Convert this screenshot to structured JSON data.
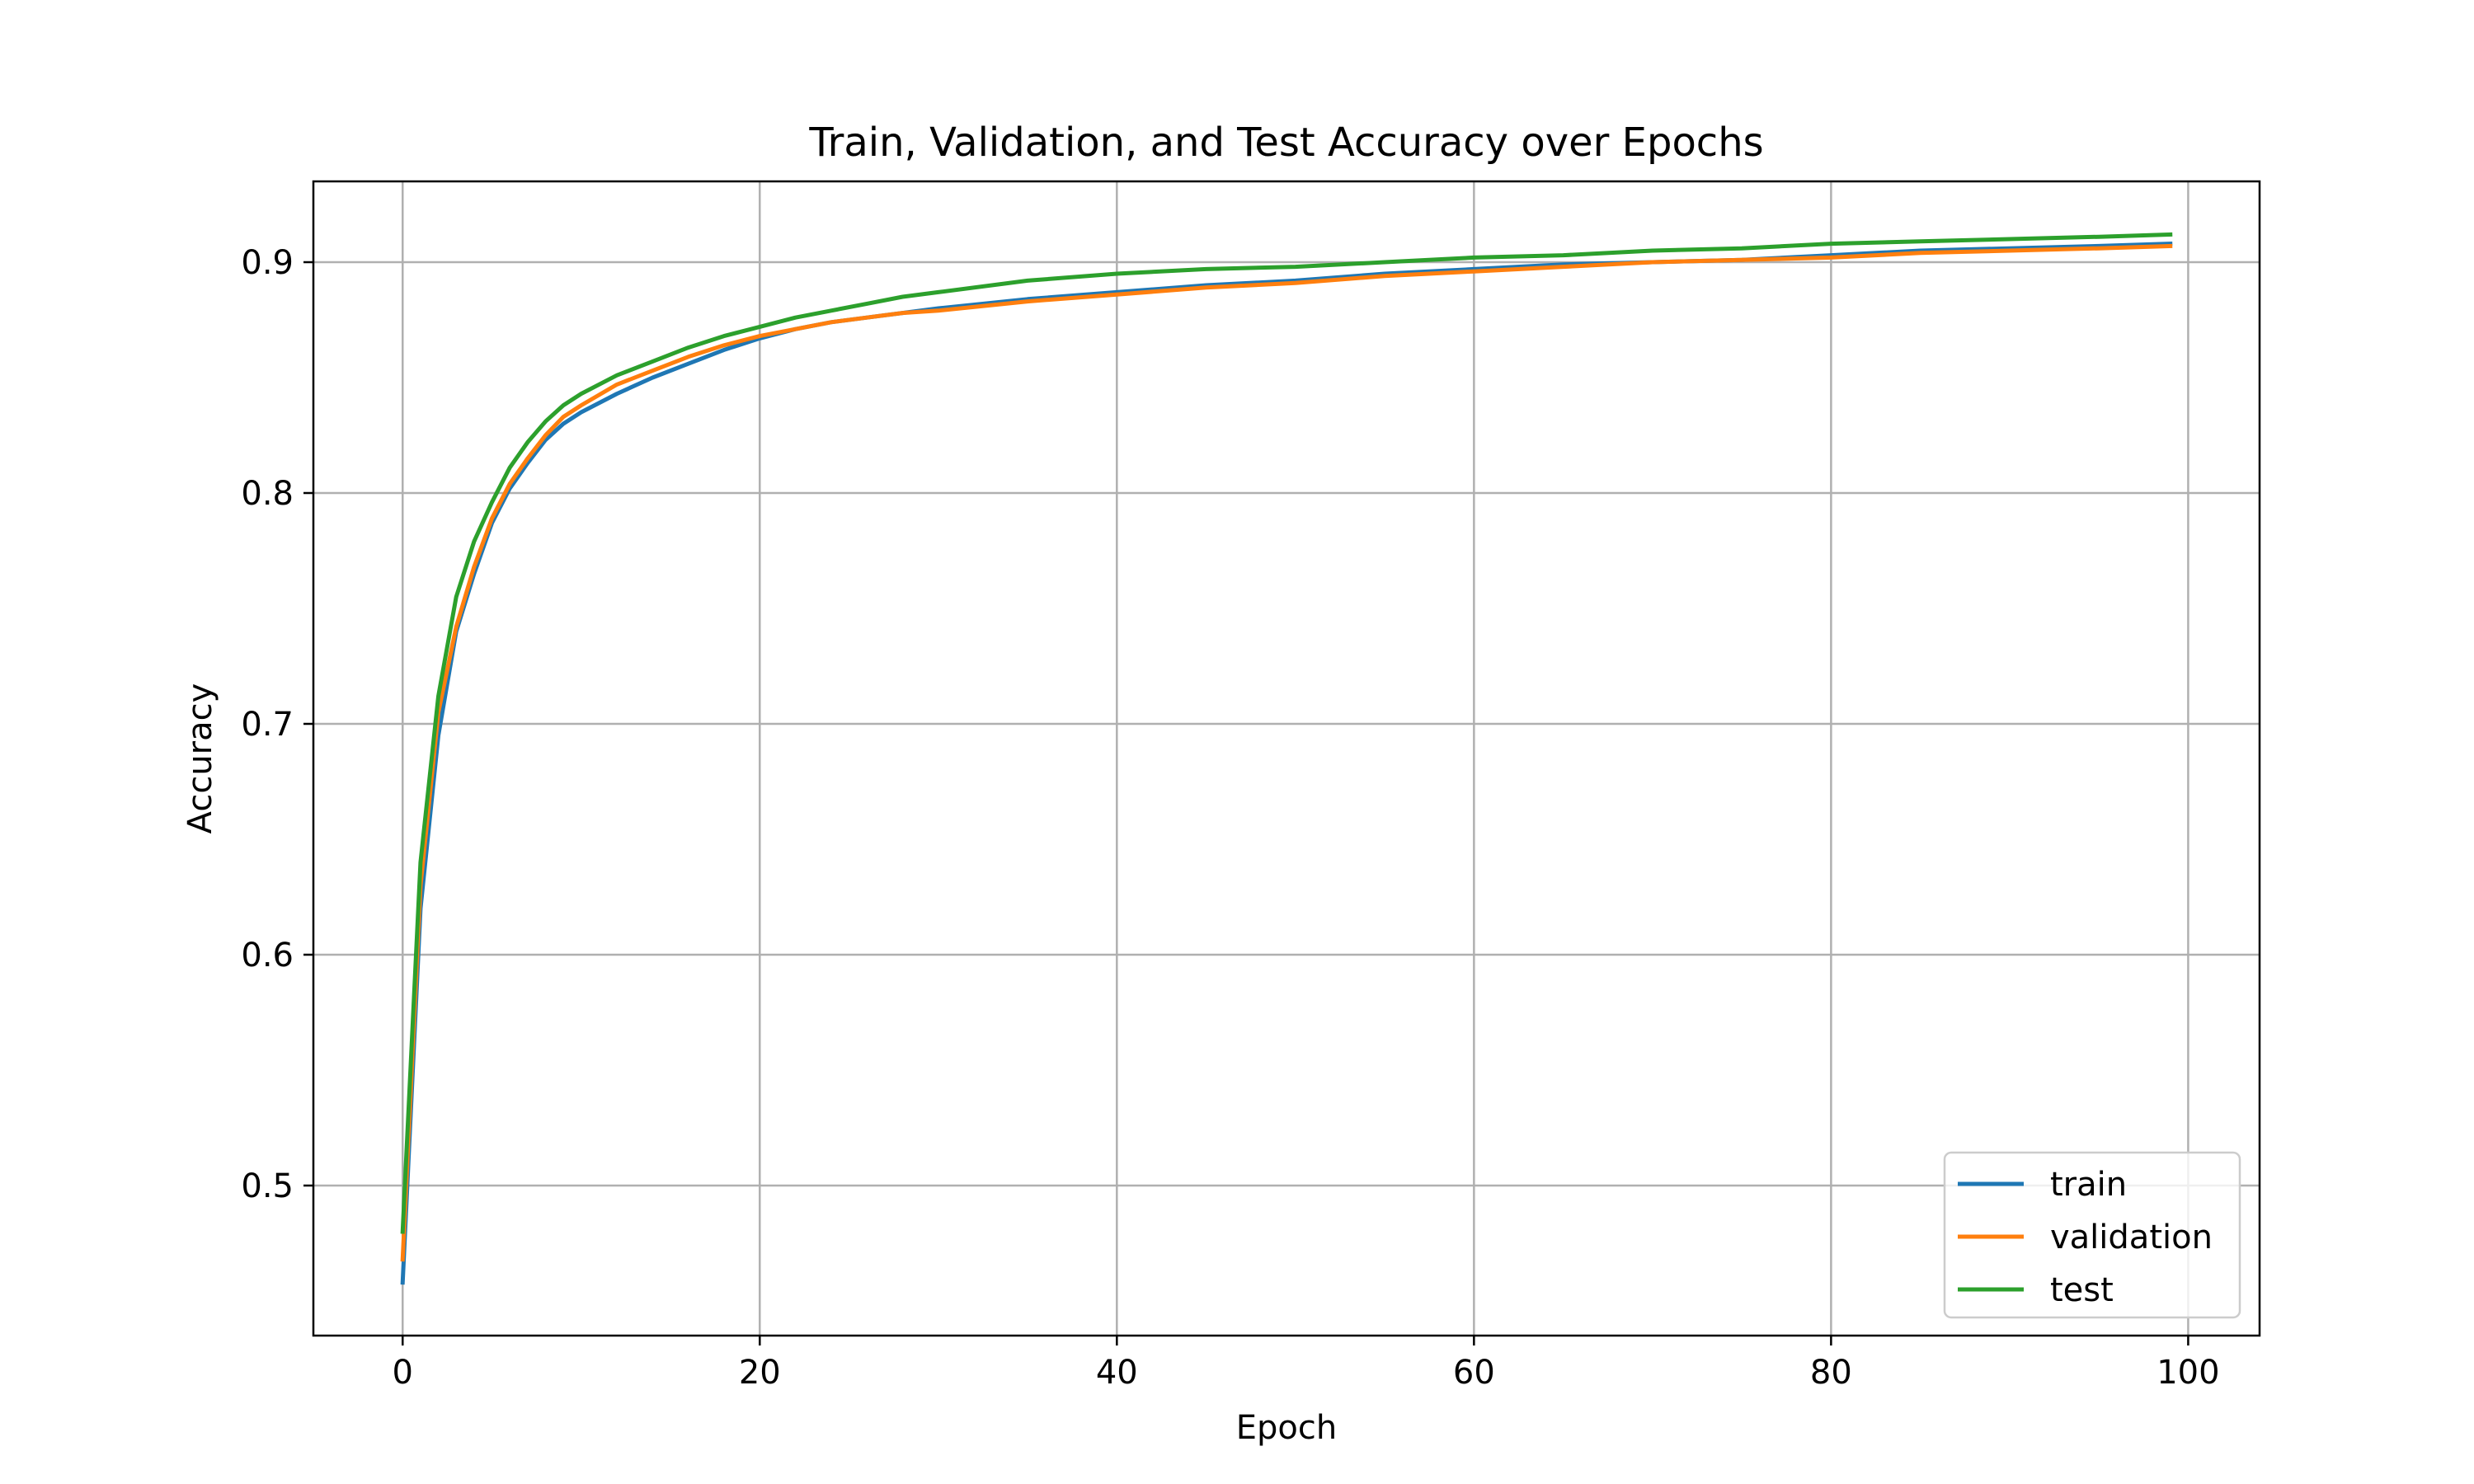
{
  "chart_data": {
    "type": "line",
    "title": "Train, Validation, and Test Accuracy over Epochs",
    "xlabel": "Epoch",
    "ylabel": "Accuracy",
    "xlim": [
      -5,
      104
    ],
    "ylim": [
      0.435,
      0.935
    ],
    "xticks": [
      0,
      20,
      40,
      60,
      80,
      100
    ],
    "yticks": [
      0.5,
      0.6,
      0.7,
      0.8,
      0.9
    ],
    "xtick_labels": [
      "0",
      "20",
      "40",
      "60",
      "80",
      "100"
    ],
    "ytick_labels": [
      "0.5",
      "0.6",
      "0.7",
      "0.8",
      "0.9"
    ],
    "grid": true,
    "legend_position": "lower-right",
    "series": [
      {
        "name": "train",
        "color": "#1f77b4",
        "x": [
          0,
          1,
          2,
          3,
          4,
          5,
          6,
          7,
          8,
          9,
          10,
          12,
          14,
          16,
          18,
          20,
          22,
          24,
          26,
          28,
          30,
          35,
          40,
          45,
          50,
          55,
          60,
          65,
          70,
          75,
          80,
          85,
          90,
          95,
          99
        ],
        "y": [
          0.458,
          0.62,
          0.695,
          0.74,
          0.765,
          0.787,
          0.802,
          0.813,
          0.823,
          0.83,
          0.835,
          0.843,
          0.85,
          0.856,
          0.862,
          0.867,
          0.871,
          0.874,
          0.876,
          0.878,
          0.88,
          0.884,
          0.887,
          0.89,
          0.892,
          0.895,
          0.897,
          0.899,
          0.9,
          0.901,
          0.903,
          0.905,
          0.906,
          0.907,
          0.908
        ]
      },
      {
        "name": "validation",
        "color": "#ff7f0e",
        "x": [
          0,
          1,
          2,
          3,
          4,
          5,
          6,
          7,
          8,
          9,
          10,
          12,
          14,
          16,
          18,
          20,
          22,
          24,
          26,
          28,
          30,
          35,
          40,
          45,
          50,
          55,
          60,
          65,
          70,
          75,
          80,
          85,
          90,
          95,
          99
        ],
        "y": [
          0.468,
          0.63,
          0.705,
          0.742,
          0.768,
          0.789,
          0.804,
          0.815,
          0.825,
          0.833,
          0.838,
          0.847,
          0.853,
          0.859,
          0.864,
          0.868,
          0.871,
          0.874,
          0.876,
          0.878,
          0.879,
          0.883,
          0.886,
          0.889,
          0.891,
          0.894,
          0.896,
          0.898,
          0.9,
          0.901,
          0.902,
          0.904,
          0.905,
          0.906,
          0.907
        ]
      },
      {
        "name": "test",
        "color": "#2ca02c",
        "x": [
          0,
          1,
          2,
          3,
          4,
          5,
          6,
          7,
          8,
          9,
          10,
          12,
          14,
          16,
          18,
          20,
          22,
          24,
          26,
          28,
          30,
          35,
          40,
          45,
          50,
          55,
          60,
          65,
          70,
          75,
          80,
          85,
          90,
          95,
          99
        ],
        "y": [
          0.48,
          0.64,
          0.712,
          0.755,
          0.779,
          0.796,
          0.811,
          0.822,
          0.831,
          0.838,
          0.843,
          0.851,
          0.857,
          0.863,
          0.868,
          0.872,
          0.876,
          0.879,
          0.882,
          0.885,
          0.887,
          0.892,
          0.895,
          0.897,
          0.898,
          0.9,
          0.902,
          0.903,
          0.905,
          0.906,
          0.908,
          0.909,
          0.91,
          0.911,
          0.912
        ]
      }
    ]
  }
}
